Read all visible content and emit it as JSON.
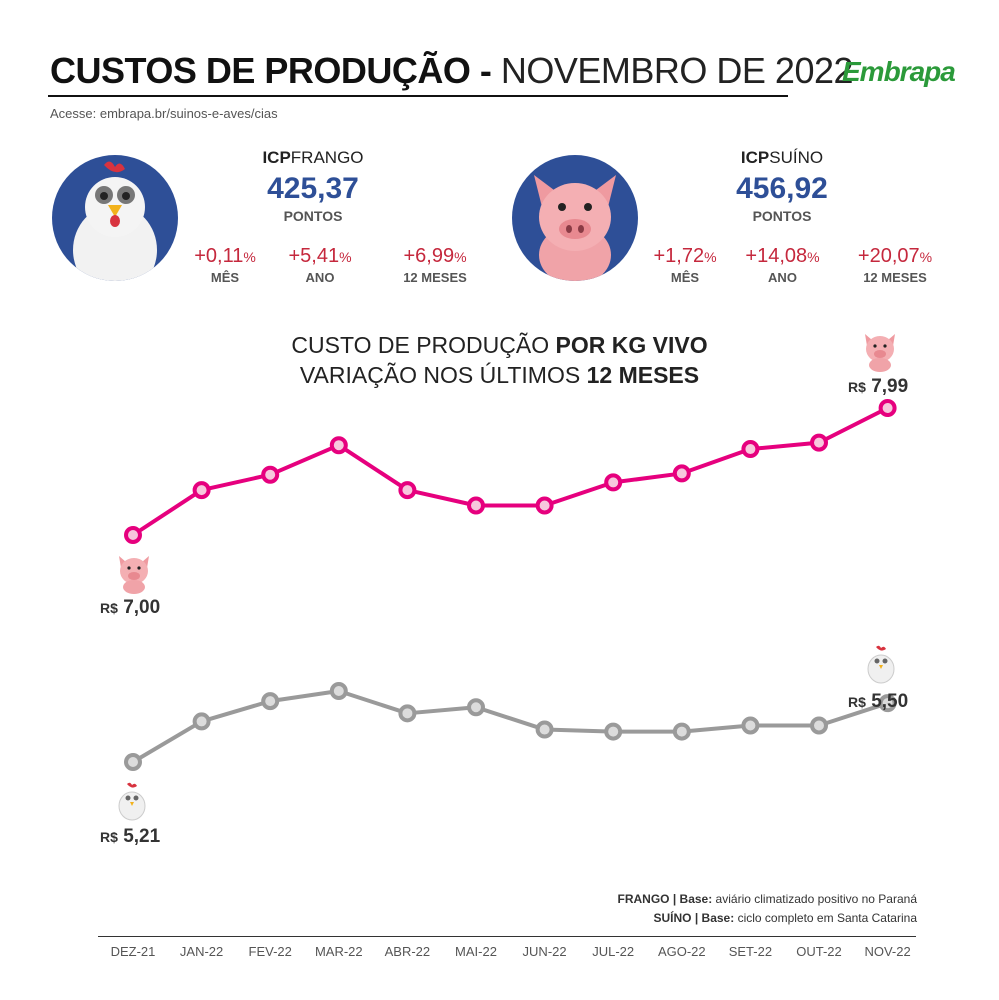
{
  "header": {
    "title_bold": "CUSTOS DE PRODUÇÃO -",
    "title_light": "NOVEMBRO DE 2022",
    "link": "Acesse: embrapa.br/suinos-e-aves/cias",
    "logo": "Embrapa",
    "brand_color": "#2b9a3a"
  },
  "frango": {
    "label_bold": "ICP",
    "label_light": "FRANGO",
    "value": "425,37",
    "unit": "PONTOS",
    "stats": [
      {
        "sign": "+",
        "num": "0,11",
        "pct": "%",
        "label": "MÊS"
      },
      {
        "sign": "+",
        "num": "5,41",
        "pct": "%",
        "label": "ANO"
      },
      {
        "sign": "+",
        "num": "6,99",
        "pct": "%",
        "label": "12 MESES"
      }
    ]
  },
  "suino": {
    "label_bold": "ICP",
    "label_light": "SUÍNO",
    "value": "456,92",
    "unit": "PONTOS",
    "stats": [
      {
        "sign": "+",
        "num": "1,72",
        "pct": "%",
        "label": "MÊS"
      },
      {
        "sign": "+",
        "num": "14,08",
        "pct": "%",
        "label": "ANO"
      },
      {
        "sign": "+",
        "num": "20,07",
        "pct": "%",
        "label": "12 MESES"
      }
    ]
  },
  "chart_title": {
    "line1_light": "CUSTO DE PRODUÇÃO ",
    "line1_bold": "POR KG VIVO",
    "line2_light": "VARIAÇÃO NOS ÚLTIMOS ",
    "line2_bold": "12 MESES"
  },
  "prices": {
    "suino_start": {
      "cur": "R$",
      "val": "7,00"
    },
    "suino_end": {
      "cur": "R$",
      "val": "7,99"
    },
    "frango_start": {
      "cur": "R$",
      "val": "5,21"
    },
    "frango_end": {
      "cur": "R$",
      "val": "5,50"
    }
  },
  "footnotes": {
    "frango_bold": "FRANGO | Base:",
    "frango_text": " aviário climatizado positivo no Paraná",
    "suino_bold": "SUÍNO | Base:",
    "suino_text": " ciclo completo em Santa Catarina"
  },
  "colors": {
    "navy": "#2e4f97",
    "pink_line": "#e6007e",
    "gray_line": "#9a9a9a",
    "increase_red": "#c5283d"
  },
  "chart_data": {
    "type": "line",
    "categories": [
      "DEZ-21",
      "JAN-22",
      "FEV-22",
      "MAR-22",
      "ABR-22",
      "MAI-22",
      "JUN-22",
      "JUL-22",
      "AGO-22",
      "SET-22",
      "OUT-22",
      "NOV-22"
    ],
    "series": [
      {
        "name": "SUÍNO",
        "values": [
          7.0,
          7.35,
          7.47,
          7.7,
          7.35,
          7.23,
          7.23,
          7.41,
          7.48,
          7.67,
          7.72,
          7.99
        ]
      },
      {
        "name": "FRANGO",
        "values": [
          5.21,
          5.41,
          5.51,
          5.56,
          5.45,
          5.48,
          5.37,
          5.36,
          5.36,
          5.39,
          5.39,
          5.5
        ]
      }
    ],
    "xlabel": "",
    "ylabel": ""
  }
}
